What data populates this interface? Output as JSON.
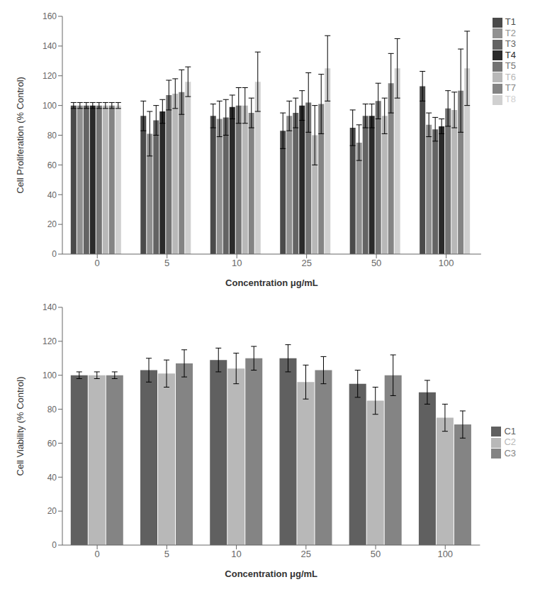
{
  "chart_data": [
    {
      "type": "bar",
      "xlabel": "Concentration μg/mL",
      "ylabel": "Cell Proliferation (% Control)",
      "categories": [
        "0",
        "5",
        "10",
        "25",
        "50",
        "100"
      ],
      "series": [
        {
          "name": "T1",
          "color": "#4a4a4a",
          "values": [
            100,
            93,
            93,
            83,
            85,
            113
          ],
          "errors": [
            2,
            10,
            8,
            12,
            12,
            10
          ]
        },
        {
          "name": "T2",
          "color": "#909090",
          "values": [
            100,
            81,
            91,
            93,
            75,
            87
          ],
          "errors": [
            2,
            15,
            12,
            10,
            12,
            8
          ]
        },
        {
          "name": "T3",
          "color": "#636363",
          "values": [
            100,
            90,
            92,
            95,
            93,
            84
          ],
          "errors": [
            2,
            10,
            12,
            10,
            8,
            8
          ]
        },
        {
          "name": "T4",
          "color": "#2a2a2a",
          "values": [
            100,
            96,
            99,
            100,
            93,
            86
          ],
          "errors": [
            2,
            8,
            8,
            10,
            8,
            5
          ]
        },
        {
          "name": "T5",
          "color": "#737373",
          "values": [
            100,
            107,
            100,
            102,
            103,
            98
          ],
          "errors": [
            2,
            10,
            12,
            20,
            12,
            12
          ]
        },
        {
          "name": "T6",
          "color": "#b8b8b8",
          "values": [
            100,
            108,
            100,
            80,
            93,
            97
          ],
          "errors": [
            2,
            10,
            12,
            20,
            12,
            12
          ]
        },
        {
          "name": "T7",
          "color": "#848484",
          "values": [
            100,
            109,
            95,
            101,
            115,
            110
          ],
          "errors": [
            2,
            15,
            10,
            20,
            20,
            28
          ]
        },
        {
          "name": "T8",
          "color": "#d0d0d0",
          "values": [
            100,
            116,
            116,
            125,
            125,
            125
          ],
          "errors": [
            2,
            10,
            20,
            22,
            20,
            25
          ]
        }
      ],
      "ylim": [
        0,
        160
      ],
      "yticks": [
        0,
        20,
        40,
        60,
        80,
        100,
        120,
        140,
        160
      ],
      "grid": false,
      "legend": "right"
    },
    {
      "type": "bar",
      "xlabel": "Concentration μg/mL",
      "ylabel": "Cell Viability (% Control)",
      "categories": [
        "0",
        "5",
        "10",
        "25",
        "50",
        "100"
      ],
      "series": [
        {
          "name": "C1",
          "color": "#606060",
          "values": [
            100,
            103,
            109,
            110,
            95,
            90
          ],
          "errors": [
            2,
            7,
            7,
            8,
            8,
            7
          ]
        },
        {
          "name": "C2",
          "color": "#b8b8b8",
          "values": [
            100,
            101,
            104,
            96,
            85,
            75
          ],
          "errors": [
            2,
            8,
            9,
            10,
            8,
            8
          ]
        },
        {
          "name": "C3",
          "color": "#848484",
          "values": [
            100,
            107,
            110,
            103,
            100,
            71
          ],
          "errors": [
            2,
            8,
            7,
            8,
            12,
            8
          ]
        }
      ],
      "ylim": [
        0,
        140
      ],
      "yticks": [
        0,
        20,
        40,
        60,
        80,
        100,
        120,
        140
      ],
      "grid": false,
      "legend": "right"
    }
  ]
}
